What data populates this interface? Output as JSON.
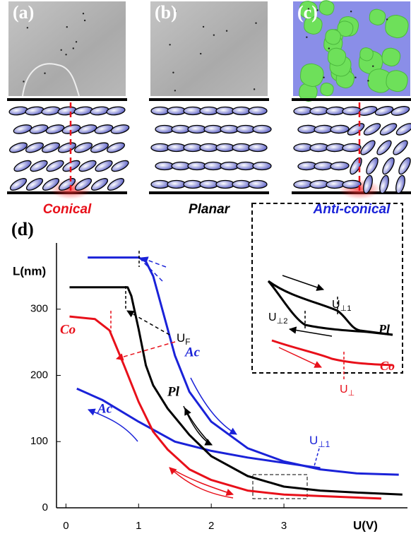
{
  "panels": [
    {
      "label": "(a)",
      "caption": "Conical",
      "caption_color": "#e8101a"
    },
    {
      "label": "(b)",
      "caption": "Planar",
      "caption_color": "#000000"
    },
    {
      "label": "(c)",
      "caption": "Anti-conical",
      "caption_color": "#1a22d8"
    }
  ],
  "chart_data": {
    "type": "line",
    "panel_label": "(d)",
    "x_label": "U(V)",
    "y_label": "L(nm)",
    "xlim": [
      -0.13,
      4.7
    ],
    "ylim": [
      0,
      400
    ],
    "xticks": [
      0,
      1,
      2,
      3
    ],
    "yticks": [
      0,
      100,
      200,
      300
    ],
    "series": [
      {
        "name": "Ac",
        "color": "#1a22d8",
        "x": [
          0.3,
          1.0,
          1.1,
          1.2,
          1.35,
          1.5,
          1.7,
          2.0,
          2.5,
          3.0,
          3.5,
          4.0,
          4.58
        ],
        "values": [
          378,
          378,
          372,
          350,
          290,
          230,
          175,
          130,
          90,
          70,
          58,
          52,
          50
        ]
      },
      {
        "name": "Ac",
        "color": "#1a22d8",
        "x": [
          0.15,
          0.5,
          1.0,
          1.5,
          2.0,
          2.5,
          3.0,
          3.5
        ],
        "values": [
          180,
          163,
          130,
          100,
          86,
          76,
          68,
          60
        ]
      },
      {
        "name": "Pl",
        "color": "#000000",
        "x": [
          0.05,
          0.85,
          0.9,
          1.0,
          1.1,
          1.2,
          1.4,
          1.7,
          2.0,
          2.5,
          3.0,
          3.5,
          4.0,
          4.63
        ],
        "values": [
          333,
          333,
          320,
          270,
          215,
          185,
          150,
          110,
          78,
          48,
          32,
          26,
          23,
          20
        ]
      },
      {
        "name": "Co",
        "color": "#e8101a",
        "x": [
          0.05,
          0.4,
          0.6,
          0.8,
          1.0,
          1.2,
          1.4,
          1.7,
          2.0,
          2.5,
          3.0,
          4.34
        ],
        "values": [
          289,
          285,
          268,
          215,
          160,
          115,
          88,
          58,
          42,
          26,
          20,
          14
        ]
      }
    ],
    "annotations": [
      {
        "base": "U",
        "sub": "F",
        "color": "#000000"
      },
      {
        "base": "U",
        "sub": "⊥1",
        "color": "#1a22d8"
      }
    ],
    "inset": {
      "annotations": [
        {
          "base": "U",
          "sub": "⊥1",
          "color": "#000000"
        },
        {
          "base": "U",
          "sub": "⊥2",
          "color": "#000000"
        },
        {
          "base": "U",
          "sub": "⊥",
          "color": "#e8101a"
        }
      ],
      "curve_labels": [
        {
          "text": "Pl",
          "color": "#000000"
        },
        {
          "text": "Co",
          "color": "#e8101a"
        }
      ]
    }
  }
}
